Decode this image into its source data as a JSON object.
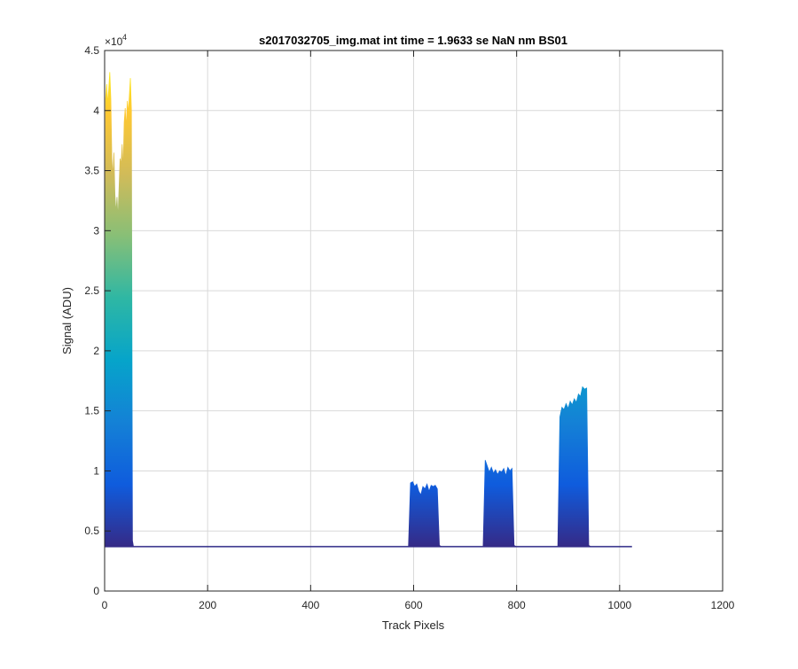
{
  "chart_data": {
    "type": "area",
    "title": "s2017032705_img.mat int time = 1.9633 se  NaN nm BS01",
    "xlabel": "Track Pixels",
    "ylabel": "Signal (ADU)",
    "xlim": [
      0,
      1200
    ],
    "ylim": [
      0,
      45000
    ],
    "xticks": [
      0,
      200,
      400,
      600,
      800,
      1000,
      1200
    ],
    "yticks": [
      0,
      0.5,
      1,
      1.5,
      2,
      2.5,
      3,
      3.5,
      4,
      4.5
    ],
    "ytick_labels": [
      "0",
      "0.5",
      "1",
      "1.5",
      "2",
      "2.5",
      "3",
      "3.5",
      "4",
      "4.5"
    ],
    "y_exponent_label": "×10",
    "y_exponent_power": "4",
    "grid": true,
    "baseline": 3700,
    "x_data_extent": [
      0,
      1024
    ],
    "colormap": [
      "#352a87",
      "#0f5cdd",
      "#1481d6",
      "#06a4ca",
      "#2eb7a4",
      "#87bf77",
      "#d1bb59",
      "#fec832",
      "#f9fb0e"
    ],
    "fill_top_color": "#2f2a86",
    "series": [
      {
        "x": [
          0,
          2,
          4,
          6,
          8,
          10,
          12,
          14,
          16,
          18,
          20,
          22,
          24,
          26,
          28,
          30,
          32,
          34,
          36,
          38,
          40,
          42,
          44,
          46,
          48,
          50,
          52,
          54,
          56,
          58,
          60,
          62,
          64,
          66,
          68,
          70,
          72,
          75,
          80
        ],
        "y": [
          3700,
          41000,
          42200,
          40500,
          41800,
          43200,
          41000,
          36000,
          34500,
          36500,
          33000,
          31500,
          32800,
          31000,
          33500,
          36000,
          35500,
          37200,
          35000,
          39000,
          40200,
          38500,
          40800,
          39800,
          41200,
          42700,
          40000,
          4200,
          3700,
          3700,
          3700,
          3700,
          3700,
          3700,
          3700,
          3700,
          3700,
          3700,
          3700
        ]
      },
      {
        "x": [
          590,
          594,
          598,
          602,
          606,
          610,
          614,
          618,
          622,
          626,
          630,
          634,
          638,
          642,
          646,
          650,
          654
        ],
        "y": [
          3700,
          9000,
          9100,
          8700,
          8900,
          8300,
          8000,
          8700,
          8500,
          8900,
          8300,
          8800,
          8700,
          8800,
          8500,
          3800,
          3700
        ]
      },
      {
        "x": [
          735,
          739,
          743,
          747,
          751,
          755,
          759,
          763,
          767,
          771,
          775,
          779,
          783,
          787,
          791,
          795,
          799
        ],
        "y": [
          3700,
          10900,
          10400,
          9900,
          10300,
          9800,
          10100,
          9700,
          10000,
          9900,
          10200,
          9600,
          10300,
          10000,
          10200,
          3800,
          3700
        ]
      },
      {
        "x": [
          880,
          884,
          888,
          892,
          896,
          900,
          904,
          908,
          912,
          916,
          920,
          924,
          928,
          932,
          936,
          940,
          944
        ],
        "y": [
          3700,
          14500,
          15300,
          15100,
          15600,
          15200,
          15800,
          15500,
          16000,
          15700,
          16400,
          16200,
          17000,
          16800,
          16900,
          3800,
          3700
        ]
      }
    ]
  }
}
